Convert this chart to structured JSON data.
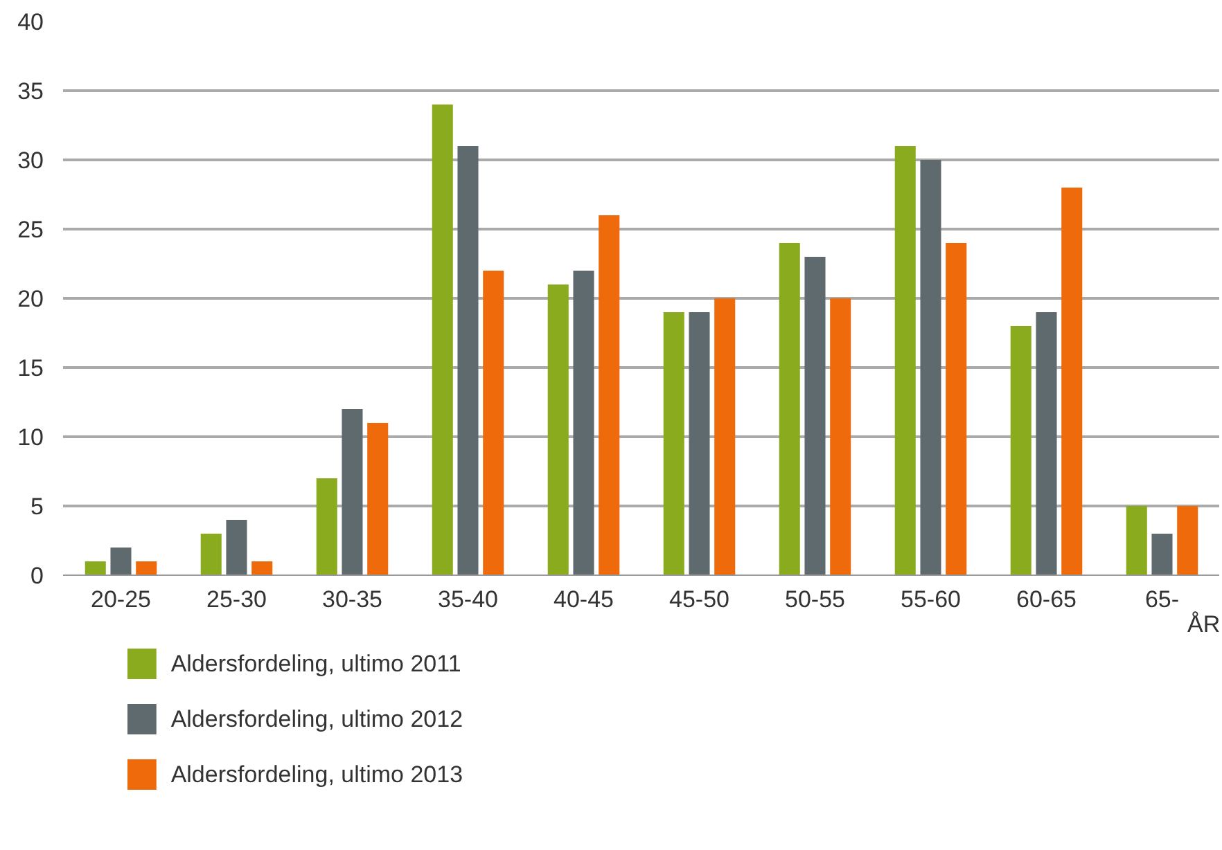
{
  "chart_data": {
    "type": "bar",
    "xlabel": "ÅR",
    "categories": [
      "20-25",
      "25-30",
      "30-35",
      "35-40",
      "40-45",
      "45-50",
      "50-55",
      "55-60",
      "60-65",
      "65-"
    ],
    "series": [
      {
        "name": "Aldersfordeling, ultimo 2011",
        "color": "#8aab1e",
        "values": [
          1,
          3,
          7,
          34,
          21,
          19,
          24,
          31,
          18,
          5
        ]
      },
      {
        "name": "Aldersfordeling, ultimo 2012",
        "color": "#5f6a6e",
        "values": [
          2,
          4,
          12,
          31,
          22,
          19,
          23,
          30,
          19,
          3
        ]
      },
      {
        "name": "Aldersfordeling, ultimo 2013",
        "color": "#ee6a0a",
        "values": [
          1,
          1,
          11,
          22,
          26,
          20,
          20,
          24,
          28,
          5
        ]
      }
    ],
    "ylim": [
      0,
      40
    ],
    "yticks": [
      0,
      5,
      10,
      15,
      20,
      25,
      30,
      35,
      40
    ],
    "grid": "y",
    "legend": "bottom"
  }
}
